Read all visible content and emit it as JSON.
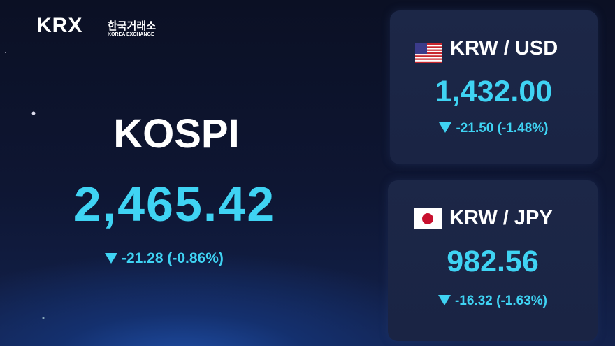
{
  "logo": {
    "brand": "KRX",
    "korean_name": "한국거래소",
    "english_name": "KOREA EXCHANGE"
  },
  "kospi": {
    "name": "KOSPI",
    "value": "2,465.42",
    "change": "-21.28 (-0.86%)"
  },
  "fx": [
    {
      "pair": "KRW / USD",
      "value": "1,432.00",
      "change": "-21.50 (-1.48%)"
    },
    {
      "pair": "KRW / JPY",
      "value": "982.56",
      "change": "-16.32 (-1.63%)"
    }
  ]
}
